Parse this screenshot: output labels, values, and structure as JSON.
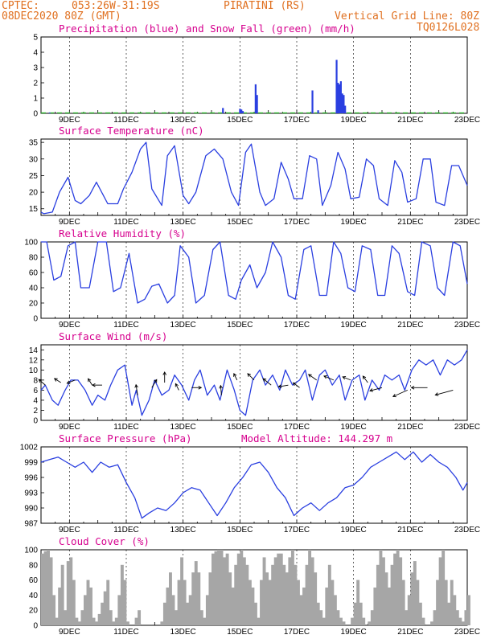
{
  "header": {
    "source": "CPTEC:",
    "coords": "053:26W-31:19S",
    "station": "PIRATINI (RS)",
    "run": "08DEC2020 80Z (GMT)",
    "grid_note": "Vertical Grid Line: 80Z",
    "code": "TQ0126L028"
  },
  "colors": {
    "header": "#e07020",
    "title": "#d6008e",
    "line": "#2a3fe0",
    "snow": "#20b020",
    "cloud": "#a6a6a6"
  },
  "chart_data": [
    {
      "id": "precip",
      "type": "bar",
      "title": "Precipitation (blue) and Snow Fall (green) (mm/h)",
      "ylim": [
        0,
        5
      ],
      "yticks": [
        "0",
        "1",
        "2",
        "3",
        "4",
        "5"
      ],
      "xticks": [
        "9DEC",
        "11DEC",
        "13DEC",
        "15DEC",
        "17DEC",
        "19DEC",
        "21DEC",
        "23DEC"
      ],
      "xlim": [
        0,
        15
      ],
      "x": [
        0.3,
        6.4,
        7.0,
        7.05,
        7.1,
        7.55,
        7.6,
        9.55,
        9.75,
        10.4,
        10.45,
        10.5,
        10.55,
        10.6,
        10.65,
        10.7
      ],
      "values": [
        0.05,
        0.35,
        0.3,
        0.25,
        0.15,
        1.9,
        1.2,
        1.5,
        0.2,
        3.5,
        2.0,
        1.9,
        2.1,
        1.3,
        1.2,
        0.5
      ],
      "snow": 0
    },
    {
      "id": "temp",
      "type": "line",
      "title": "Surface Temperature (nC)",
      "ylim": [
        13,
        36
      ],
      "yticks": [
        "15",
        "20",
        "25",
        "30",
        "35"
      ],
      "ytickvals": [
        15,
        20,
        25,
        30,
        35
      ],
      "xticks": [
        "9DEC",
        "11DEC",
        "13DEC",
        "15DEC",
        "17DEC",
        "19DEC",
        "21DEC",
        "23DEC"
      ],
      "x": [
        0,
        0.1,
        0.4,
        0.65,
        0.95,
        1.2,
        1.4,
        1.7,
        1.95,
        2.35,
        2.7,
        2.9,
        3.2,
        3.5,
        3.7,
        3.9,
        4.25,
        4.45,
        4.7,
        5.0,
        5.2,
        5.45,
        5.8,
        6.1,
        6.4,
        6.7,
        6.95,
        7.2,
        7.4,
        7.7,
        7.9,
        8.2,
        8.45,
        8.7,
        8.9,
        9.2,
        9.45,
        9.7,
        9.9,
        10.2,
        10.45,
        10.7,
        10.9,
        11.2,
        11.45,
        11.7,
        11.9,
        12.2,
        12.45,
        12.7,
        12.9,
        13.2,
        13.45,
        13.7,
        13.9,
        14.2,
        14.45,
        14.7,
        15
      ],
      "values": [
        14,
        13.5,
        14,
        20,
        24.5,
        17.5,
        16.5,
        19,
        23,
        16.5,
        16.5,
        21,
        26,
        33,
        35,
        21,
        16,
        31,
        34,
        19,
        16.5,
        20,
        31,
        33,
        30,
        20,
        16,
        32,
        34.5,
        20,
        16,
        18,
        29,
        24,
        18,
        18,
        31,
        30,
        16,
        22,
        32,
        27,
        18,
        18.5,
        30,
        28,
        18,
        16,
        29.5,
        26,
        17,
        18,
        30,
        30,
        17,
        16,
        28,
        28,
        22
      ],
      "series": []
    },
    {
      "id": "rh",
      "type": "line",
      "title": "Relative Humidity (%)",
      "ylim": [
        0,
        100
      ],
      "yticks": [
        "0",
        "20",
        "40",
        "60",
        "80",
        "100"
      ],
      "ytickvals": [
        0,
        20,
        40,
        60,
        80,
        100
      ],
      "xticks": [
        "9DEC",
        "11DEC",
        "13DEC",
        "15DEC",
        "17DEC",
        "19DEC",
        "21DEC",
        "23DEC"
      ],
      "x": [
        0,
        0.2,
        0.45,
        0.7,
        0.95,
        1.2,
        1.4,
        1.7,
        2.0,
        2.3,
        2.55,
        2.8,
        3.1,
        3.4,
        3.65,
        3.9,
        4.15,
        4.45,
        4.7,
        4.9,
        5.2,
        5.45,
        5.75,
        6.05,
        6.3,
        6.6,
        6.85,
        7.05,
        7.35,
        7.6,
        7.9,
        8.15,
        8.45,
        8.7,
        8.95,
        9.25,
        9.5,
        9.8,
        10.05,
        10.3,
        10.55,
        10.8,
        11.05,
        11.3,
        11.6,
        11.85,
        12.1,
        12.35,
        12.6,
        12.9,
        13.15,
        13.4,
        13.7,
        13.95,
        14.2,
        14.5,
        14.75,
        15
      ],
      "values": [
        100,
        100,
        50,
        55,
        95,
        100,
        40,
        40,
        100,
        100,
        35,
        40,
        85,
        20,
        25,
        42,
        45,
        20,
        30,
        95,
        80,
        20,
        30,
        90,
        100,
        30,
        25,
        50,
        70,
        40,
        60,
        100,
        80,
        30,
        25,
        90,
        95,
        30,
        30,
        100,
        85,
        40,
        35,
        95,
        90,
        30,
        30,
        95,
        85,
        35,
        30,
        100,
        95,
        40,
        30,
        100,
        95,
        45
      ],
      "series": []
    },
    {
      "id": "wind",
      "type": "line",
      "title": "Surface Wind (m/s)",
      "ylim": [
        0,
        15
      ],
      "yticks": [
        "0",
        "2",
        "4",
        "6",
        "8",
        "10",
        "12",
        "14"
      ],
      "ytickvals": [
        0,
        2,
        4,
        6,
        8,
        10,
        12,
        14
      ],
      "xticks": [
        "9DEC",
        "11DEC",
        "13DEC",
        "15DEC",
        "17DEC",
        "19DEC",
        "21DEC",
        "23DEC"
      ],
      "x": [
        0,
        0.15,
        0.4,
        0.6,
        0.85,
        1.05,
        1.3,
        1.55,
        1.8,
        2.0,
        2.25,
        2.45,
        2.7,
        2.95,
        3.2,
        3.35,
        3.55,
        3.8,
        4.0,
        4.25,
        4.5,
        4.7,
        4.95,
        5.2,
        5.4,
        5.6,
        5.85,
        6.1,
        6.3,
        6.55,
        6.8,
        7.0,
        7.2,
        7.45,
        7.7,
        7.9,
        8.15,
        8.4,
        8.6,
        8.85,
        9.1,
        9.3,
        9.55,
        9.8,
        10.0,
        10.25,
        10.5,
        10.7,
        10.95,
        11.2,
        11.4,
        11.65,
        11.9,
        12.1,
        12.35,
        12.6,
        12.8,
        13.05,
        13.3,
        13.55,
        13.8,
        14.05,
        14.3,
        14.55,
        14.8,
        15
      ],
      "values": [
        6,
        7,
        4,
        3,
        6,
        8,
        8,
        6,
        3,
        5,
        4,
        7,
        10,
        11,
        3,
        6,
        1,
        4,
        8,
        5,
        6,
        9,
        7,
        4,
        8,
        10,
        5,
        7,
        4,
        10,
        6,
        2,
        1,
        8,
        10,
        7,
        9,
        6,
        10,
        7,
        8,
        10,
        4,
        9,
        10,
        7,
        9,
        4,
        8,
        9,
        4,
        8,
        6,
        9,
        8,
        9,
        6,
        10,
        12,
        11,
        12,
        9,
        12,
        11,
        12,
        14
      ],
      "series": []
    },
    {
      "id": "pres",
      "type": "line",
      "title": "Surface Pressure (hPa)",
      "subtitle": "Model Altitude: 144.297 m",
      "ylim": [
        987,
        1002
      ],
      "yticks": [
        "987",
        "990",
        "993",
        "996",
        "999",
        "1002"
      ],
      "ytickvals": [
        987,
        990,
        993,
        996,
        999,
        1002
      ],
      "xticks": [
        "9DEC",
        "11DEC",
        "13DEC",
        "15DEC",
        "17DEC",
        "19DEC",
        "21DEC",
        "23DEC"
      ],
      "x": [
        0,
        0.3,
        0.6,
        0.9,
        1.2,
        1.5,
        1.8,
        2.1,
        2.4,
        2.7,
        3.0,
        3.3,
        3.55,
        3.8,
        4.1,
        4.4,
        4.7,
        5.0,
        5.3,
        5.6,
        5.9,
        6.2,
        6.5,
        6.8,
        7.1,
        7.4,
        7.7,
        8.0,
        8.3,
        8.6,
        8.9,
        9.2,
        9.5,
        9.8,
        10.1,
        10.4,
        10.7,
        11.0,
        11.3,
        11.6,
        11.9,
        12.2,
        12.5,
        12.8,
        13.1,
        13.4,
        13.7,
        14.0,
        14.3,
        14.6,
        14.85,
        15
      ],
      "values": [
        999,
        999.5,
        1000,
        999,
        998,
        999,
        997,
        999,
        998,
        998.5,
        995,
        992,
        988,
        989,
        990,
        989.5,
        991,
        993,
        994,
        993.5,
        991,
        988.5,
        991,
        994,
        996,
        998.5,
        999,
        997,
        994,
        992,
        988.5,
        990,
        991,
        989.5,
        991,
        992,
        994,
        994.5,
        996,
        998,
        999,
        1000,
        1001,
        999.5,
        1001,
        999,
        1000.5,
        999,
        998,
        996,
        993.5,
        995
      ],
      "series": []
    },
    {
      "id": "cloud",
      "type": "bar",
      "title": "Cloud Cover (%)",
      "ylim": [
        0,
        100
      ],
      "yticks": [
        "0",
        "20",
        "40",
        "60",
        "80",
        "100"
      ],
      "ytickvals": [
        0,
        20,
        40,
        60,
        80,
        100
      ],
      "xticks": [
        "9DEC",
        "11DEC",
        "13DEC",
        "15DEC",
        "17DEC",
        "19DEC",
        "21DEC",
        "23DEC"
      ],
      "x": [
        0,
        0.1,
        0.2,
        0.3,
        0.4,
        0.5,
        0.6,
        0.7,
        0.8,
        0.9,
        1.0,
        1.1,
        1.2,
        1.3,
        1.4,
        1.5,
        1.6,
        1.7,
        1.8,
        1.9,
        2.0,
        2.1,
        2.2,
        2.3,
        2.4,
        2.5,
        2.6,
        2.7,
        2.8,
        2.9,
        3.0,
        3.1,
        3.2,
        3.3,
        3.4,
        3.5,
        3.6,
        3.7,
        3.8,
        3.9,
        4.0,
        4.1,
        4.2,
        4.3,
        4.4,
        4.5,
        4.6,
        4.7,
        4.8,
        4.9,
        5.0,
        5.1,
        5.2,
        5.3,
        5.4,
        5.5,
        5.6,
        5.7,
        5.8,
        5.9,
        6.0,
        6.1,
        6.2,
        6.3,
        6.4,
        6.5,
        6.6,
        6.7,
        6.8,
        6.9,
        7.0,
        7.1,
        7.2,
        7.3,
        7.4,
        7.5,
        7.6,
        7.7,
        7.8,
        7.9,
        8.0,
        8.1,
        8.2,
        8.3,
        8.4,
        8.5,
        8.6,
        8.7,
        8.8,
        8.9,
        9.0,
        9.1,
        9.2,
        9.3,
        9.4,
        9.5,
        9.6,
        9.7,
        9.8,
        9.9,
        10.0,
        10.1,
        10.2,
        10.3,
        10.4,
        10.5,
        10.6,
        10.7,
        10.8,
        10.9,
        11.0,
        11.1,
        11.2,
        11.3,
        11.4,
        11.5,
        11.6,
        11.7,
        11.8,
        11.9,
        12.0,
        12.1,
        12.2,
        12.3,
        12.4,
        12.5,
        12.6,
        12.7,
        12.8,
        12.9,
        13.0,
        13.1,
        13.2,
        13.3,
        13.4,
        13.5,
        13.6,
        13.7,
        13.8,
        13.9,
        14.0,
        14.1,
        14.2,
        14.3,
        14.4,
        14.5,
        14.6,
        14.7,
        14.8,
        14.9,
        15.0
      ],
      "values": [
        95,
        98,
        100,
        90,
        40,
        10,
        50,
        80,
        20,
        85,
        90,
        60,
        10,
        5,
        20,
        40,
        60,
        50,
        10,
        5,
        15,
        30,
        45,
        60,
        20,
        5,
        10,
        40,
        80,
        60,
        5,
        0,
        0,
        10,
        20,
        0,
        0,
        0,
        0,
        0,
        0,
        0,
        5,
        30,
        50,
        70,
        40,
        20,
        60,
        90,
        60,
        30,
        40,
        70,
        85,
        70,
        20,
        10,
        40,
        70,
        95,
        98,
        100,
        100,
        90,
        95,
        70,
        50,
        80,
        95,
        100,
        90,
        80,
        60,
        50,
        30,
        10,
        60,
        90,
        70,
        60,
        80,
        90,
        95,
        95,
        80,
        70,
        90,
        100,
        80,
        60,
        40,
        50,
        80,
        100,
        90,
        70,
        30,
        20,
        10,
        50,
        80,
        60,
        40,
        20,
        10,
        5,
        0,
        0,
        10,
        30,
        60,
        30,
        10,
        0,
        5,
        20,
        50,
        80,
        100,
        90,
        70,
        50,
        80,
        95,
        100,
        90,
        60,
        20,
        40,
        70,
        85,
        60,
        30,
        10,
        0,
        0,
        5,
        20,
        60,
        90,
        100,
        60,
        30,
        60,
        40,
        20,
        10,
        5,
        20,
        40
      ],
      "series": []
    }
  ],
  "wind_arrows": [
    {
      "x": 0.15,
      "y": 7.0,
      "dx": -8,
      "dy": -7
    },
    {
      "x": 0.7,
      "y": 7.5,
      "dx": -8,
      "dy": -5
    },
    {
      "x": 1.2,
      "y": 8.0,
      "dx": -10,
      "dy": 4
    },
    {
      "x": 1.8,
      "y": 7.0,
      "dx": -5,
      "dy": -8
    },
    {
      "x": 2.15,
      "y": 7.0,
      "dx": -12,
      "dy": 0
    },
    {
      "x": 3.4,
      "y": 5.0,
      "dx": -2,
      "dy": -13
    },
    {
      "x": 3.9,
      "y": 6.5,
      "dx": 6,
      "dy": -10
    },
    {
      "x": 4.35,
      "y": 7.5,
      "dx": 0,
      "dy": -13
    },
    {
      "x": 4.85,
      "y": 6.0,
      "dx": -4,
      "dy": -8
    },
    {
      "x": 5.3,
      "y": 6.5,
      "dx": 12,
      "dy": 0
    },
    {
      "x": 6.35,
      "y": 5.0,
      "dx": -1,
      "dy": -12
    },
    {
      "x": 6.9,
      "y": 8.0,
      "dx": -4,
      "dy": -8
    },
    {
      "x": 7.5,
      "y": 8.0,
      "dx": -8,
      "dy": -8
    },
    {
      "x": 8.1,
      "y": 7.0,
      "dx": -10,
      "dy": -8
    },
    {
      "x": 8.7,
      "y": 7.0,
      "dx": -12,
      "dy": 2
    },
    {
      "x": 9.1,
      "y": 6.5,
      "dx": -8,
      "dy": -6
    },
    {
      "x": 9.7,
      "y": 8.0,
      "dx": -10,
      "dy": -7
    },
    {
      "x": 10.3,
      "y": 8.0,
      "dx": -12,
      "dy": -5
    },
    {
      "x": 10.9,
      "y": 8.0,
      "dx": -10,
      "dy": -4
    },
    {
      "x": 11.5,
      "y": 7.5,
      "dx": -6,
      "dy": -8
    },
    {
      "x": 12.0,
      "y": 6.5,
      "dx": -15,
      "dy": 4
    },
    {
      "x": 12.9,
      "y": 6.0,
      "dx": -18,
      "dy": 8
    },
    {
      "x": 13.6,
      "y": 6.5,
      "dx": -20,
      "dy": 0
    },
    {
      "x": 14.5,
      "y": 6.0,
      "dx": -22,
      "dy": 6
    }
  ]
}
